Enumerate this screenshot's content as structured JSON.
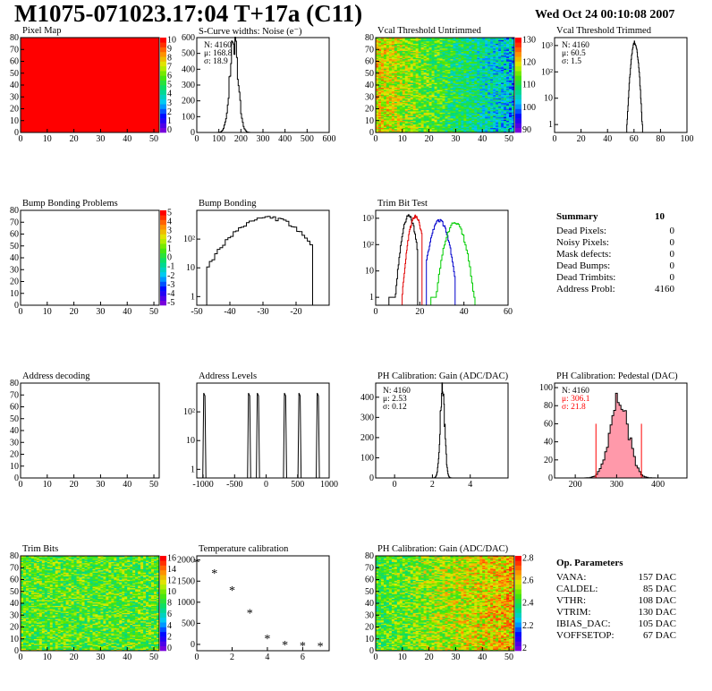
{
  "header": {
    "title": "M1075-071023.17:04 T+17a (C11)",
    "date": "Wed Oct 24 00:10:08 2007"
  },
  "colors": {
    "accent": "#ff0000",
    "series_black": "#000000",
    "series_red": "#e00000",
    "series_blue": "#0000cc",
    "series_green": "#00cc00",
    "pedestal_fill": "#ff99aa"
  },
  "chart_data": [
    {
      "id": "pixel-map",
      "type": "heatmap",
      "title": "Pixel Map",
      "xlim": [
        0,
        52
      ],
      "ylim": [
        0,
        80
      ],
      "xticks": [
        "0",
        "10",
        "20",
        "30",
        "40",
        "50"
      ],
      "yticks": [
        "0",
        "10",
        "20",
        "30",
        "40",
        "50",
        "60",
        "70",
        "80"
      ],
      "zlim": [
        0,
        10
      ],
      "colorbar_ticks": [
        "0",
        "1",
        "2",
        "3",
        "4",
        "5",
        "6",
        "7",
        "8",
        "9",
        "10"
      ],
      "uniform_value": 10,
      "fill_color": "#ff0000"
    },
    {
      "id": "noise",
      "type": "area",
      "title": "S-Curve widths: Noise (e⁻)",
      "xlim": [
        0,
        600
      ],
      "ylim": [
        0,
        600
      ],
      "xticks": [
        "0",
        "100",
        "200",
        "300",
        "400",
        "500",
        "600"
      ],
      "yticks": [
        "0",
        "100",
        "200",
        "300",
        "400",
        "500",
        "600"
      ],
      "stats": {
        "N": "N: 4160",
        "mean": "μ: 168.8",
        "sigma": "σ: 18.9"
      },
      "peak": {
        "center": 168.8,
        "sigma": 18.9,
        "height": 575
      }
    },
    {
      "id": "vcal-untrimmed",
      "type": "heatmap",
      "title": "Vcal Threshold Untrimmed",
      "xlim": [
        0,
        52
      ],
      "ylim": [
        0,
        80
      ],
      "xticks": [
        "0",
        "10",
        "20",
        "30",
        "40",
        "50"
      ],
      "yticks": [
        "0",
        "10",
        "20",
        "30",
        "40",
        "50",
        "60",
        "70",
        "80"
      ],
      "colorbar_ticks": [
        "90",
        "100",
        "110",
        "120",
        "130"
      ],
      "zlim": [
        85,
        135
      ]
    },
    {
      "id": "vcal-trimmed",
      "type": "area",
      "title": "Vcal Threshold Trimmed",
      "log_y": true,
      "xlim": [
        0,
        100
      ],
      "ylim": [
        0.5,
        2000
      ],
      "xticks": [
        "0",
        "20",
        "40",
        "60",
        "80",
        "100"
      ],
      "yticks": [
        "1",
        "10",
        "10²",
        "10³"
      ],
      "stats": {
        "N": "N: 4160",
        "mean": "μ: 60.5",
        "sigma": "σ:  1.5"
      },
      "peak": {
        "center": 60.5,
        "sigma": 1.5,
        "height": 1300
      }
    },
    {
      "id": "bump-problems",
      "type": "heatmap",
      "title": "Bump Bonding Problems",
      "xlim": [
        0,
        52
      ],
      "ylim": [
        0,
        80
      ],
      "xticks": [
        "0",
        "10",
        "20",
        "30",
        "40",
        "50"
      ],
      "yticks": [
        "0",
        "10",
        "20",
        "30",
        "40",
        "50",
        "60",
        "70",
        "80"
      ],
      "colorbar_ticks": [
        "-5",
        "-4",
        "-3",
        "-2",
        "-1",
        "0",
        "1",
        "2",
        "3",
        "4",
        "5"
      ],
      "empty": true
    },
    {
      "id": "bump-bonding",
      "type": "area",
      "title": "Bump Bonding",
      "log_y": true,
      "xlim": [
        -50,
        -10
      ],
      "ylim": [
        0.5,
        1000
      ],
      "xticks": [
        "-50",
        "-40",
        "-30",
        "-20"
      ],
      "yticks": [
        "1",
        "10",
        "10²"
      ],
      "peak": {
        "center": -28.5,
        "sigma": 6.5,
        "height": 550,
        "from": -47,
        "to": -15
      }
    },
    {
      "id": "trim-bit-test",
      "type": "area",
      "title": "Trim Bit Test",
      "log_y": true,
      "xlim": [
        0,
        60
      ],
      "ylim": [
        0.5,
        2000
      ],
      "xticks": [
        "0",
        "20",
        "40",
        "60"
      ],
      "yticks": [
        "1",
        "10",
        "10²",
        "10³"
      ],
      "series": [
        {
          "color": "#000000",
          "center": 15,
          "sigma": 1.6,
          "height": 1200,
          "from": 6,
          "to": 19
        },
        {
          "color": "#e00000",
          "center": 18,
          "sigma": 1.6,
          "height": 1200,
          "from": 12,
          "to": 21
        },
        {
          "color": "#0000cc",
          "center": 29,
          "sigma": 2.2,
          "height": 800,
          "from": 23,
          "to": 36
        },
        {
          "color": "#00cc00",
          "center": 36,
          "sigma": 2.4,
          "height": 700,
          "from": 25,
          "to": 45
        }
      ]
    },
    {
      "id": "address-decoding",
      "type": "heatmap",
      "title": "Address decoding",
      "xlim": [
        0,
        52
      ],
      "ylim": [
        0,
        80
      ],
      "xticks": [
        "0",
        "10",
        "20",
        "30",
        "40",
        "50"
      ],
      "yticks": [
        "0",
        "10",
        "20",
        "30",
        "40",
        "50",
        "60",
        "70",
        "80"
      ],
      "empty": true
    },
    {
      "id": "address-levels",
      "type": "area",
      "title": "Address Levels",
      "log_y": true,
      "xlim": [
        -1100,
        1000
      ],
      "ylim": [
        0.5,
        1000
      ],
      "xticks": [
        "-1000",
        "-500",
        "0",
        "500",
        "1000"
      ],
      "yticks": [
        "1",
        "10",
        "10²"
      ],
      "peaks": [
        -980,
        -270,
        -130,
        300,
        530,
        820
      ],
      "peak_height": 450
    },
    {
      "id": "ph-gain",
      "type": "area",
      "title": "PH Calibration: Gain (ADC/DAC)",
      "xlim": [
        -1,
        6
      ],
      "ylim": [
        0,
        470
      ],
      "xticks": [
        "0",
        "2",
        "4"
      ],
      "yticks": [
        "0",
        "100",
        "200",
        "300",
        "400"
      ],
      "stats": {
        "N": "N: 4160",
        "mean": "μ: 2.53",
        "sigma": "σ: 0.12"
      },
      "peak": {
        "center": 2.53,
        "sigma": 0.12,
        "height": 440
      }
    },
    {
      "id": "ph-pedestal",
      "type": "area",
      "title": "PH Calibration: Pedestal (DAC)",
      "xlim": [
        150,
        470
      ],
      "ylim": [
        0,
        105
      ],
      "xticks": [
        "200",
        "300",
        "400"
      ],
      "yticks": [
        "0",
        "20",
        "40",
        "60",
        "80",
        "100"
      ],
      "stats": {
        "N": "N: 4160",
        "mean": "μ: 306.1",
        "sigma": "σ: 21.8"
      },
      "peak": {
        "center": 306.1,
        "sigma": 21.8,
        "height": 90
      },
      "cut_lines": [
        250,
        360
      ],
      "cut_height": 60
    },
    {
      "id": "trim-bits",
      "type": "heatmap",
      "title": "Trim Bits",
      "xlim": [
        0,
        52
      ],
      "ylim": [
        0,
        80
      ],
      "xticks": [
        "0",
        "10",
        "20",
        "30",
        "40",
        "50"
      ],
      "yticks": [
        "0",
        "10",
        "20",
        "30",
        "40",
        "50",
        "60",
        "70",
        "80"
      ],
      "colorbar_ticks": [
        "0",
        "2",
        "4",
        "6",
        "8",
        "10",
        "12",
        "14",
        "16"
      ],
      "zlim": [
        0,
        16
      ]
    },
    {
      "id": "temperature",
      "type": "scatter",
      "title": "Temperature calibration",
      "xlim": [
        0,
        7.5
      ],
      "ylim": [
        -150,
        2100
      ],
      "xticks": [
        "0",
        "2",
        "4",
        "6"
      ],
      "yticks": [
        "0",
        "500",
        "1000",
        "1500",
        "2000"
      ],
      "x": [
        0,
        1,
        2,
        3,
        4,
        5,
        6,
        7
      ],
      "y": [
        1950,
        1700,
        1290,
        750,
        150,
        0,
        -20,
        -30
      ]
    },
    {
      "id": "ph-gain-map",
      "type": "heatmap",
      "title": "PH Calibration: Gain (ADC/DAC)",
      "xlim": [
        0,
        52
      ],
      "ylim": [
        0,
        80
      ],
      "xticks": [
        "0",
        "10",
        "20",
        "30",
        "40",
        "50"
      ],
      "yticks": [
        "0",
        "10",
        "20",
        "30",
        "40",
        "50",
        "60",
        "70",
        "80"
      ],
      "colorbar_ticks": [
        "2",
        "2.2",
        "2.4",
        "2.6",
        "2.8"
      ],
      "zlim": [
        1.9,
        2.9
      ]
    }
  ],
  "summary": {
    "title": "Summary",
    "count": "10",
    "rows": [
      {
        "label": "Dead Pixels:",
        "value": "0"
      },
      {
        "label": "Noisy Pixels:",
        "value": "0"
      },
      {
        "label": "Mask defects:",
        "value": "0"
      },
      {
        "label": "Dead Bumps:",
        "value": "0"
      },
      {
        "label": "Dead Trimbits:",
        "value": "0"
      },
      {
        "label": "Address Probl:",
        "value": "4160"
      }
    ]
  },
  "op_parameters": {
    "title": "Op. Parameters",
    "rows": [
      {
        "label": "VANA:",
        "value": "157 DAC"
      },
      {
        "label": "CALDEL:",
        "value": "85 DAC"
      },
      {
        "label": "VTHR:",
        "value": "108 DAC"
      },
      {
        "label": "VTRIM:",
        "value": "130 DAC"
      },
      {
        "label": "IBIAS_DAC:",
        "value": "105 DAC"
      },
      {
        "label": "VOFFSETOP:",
        "value": "67 DAC"
      }
    ]
  }
}
